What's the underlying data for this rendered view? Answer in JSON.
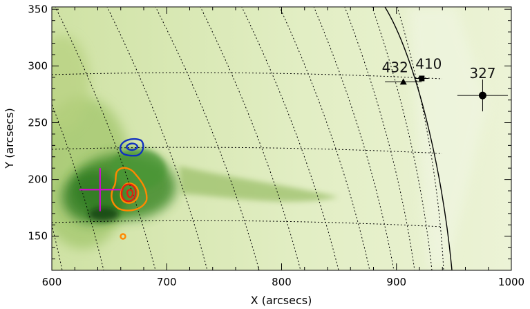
{
  "chart_data": {
    "type": "scatter",
    "xlabel": "X (arcsecs)",
    "ylabel": "Y (arcsecs)",
    "xlim": [
      600,
      1000
    ],
    "ylim": [
      120,
      352
    ],
    "xticks": [
      600,
      700,
      800,
      900,
      1000
    ],
    "yticks": [
      150,
      200,
      250,
      300,
      350
    ],
    "grid": "heliographic grid (dotted)",
    "limb": true,
    "colormap": "green EUV image",
    "points": [
      {
        "label": "432",
        "x": 906,
        "y": 286,
        "xerr": 16,
        "marker": "triangle"
      },
      {
        "label": "410",
        "x": 922,
        "y": 289,
        "xerr": 6,
        "marker": "square"
      },
      {
        "label": "327",
        "x": 975,
        "y": 274,
        "xerr": 22,
        "yerr": 14,
        "marker": "circle"
      }
    ],
    "crosshair": {
      "x": 642,
      "y": 191,
      "xerr": 18,
      "yerr": 19,
      "color": "#e000e0"
    },
    "contours": [
      {
        "color": "#1030c0",
        "center": [
          671,
          228
        ]
      },
      {
        "color": "#ff8800",
        "center": [
          667,
          186
        ]
      },
      {
        "color": "#e02010",
        "center": [
          669,
          186
        ]
      },
      {
        "color": "#ff8800",
        "center": [
          660,
          150
        ]
      }
    ]
  }
}
